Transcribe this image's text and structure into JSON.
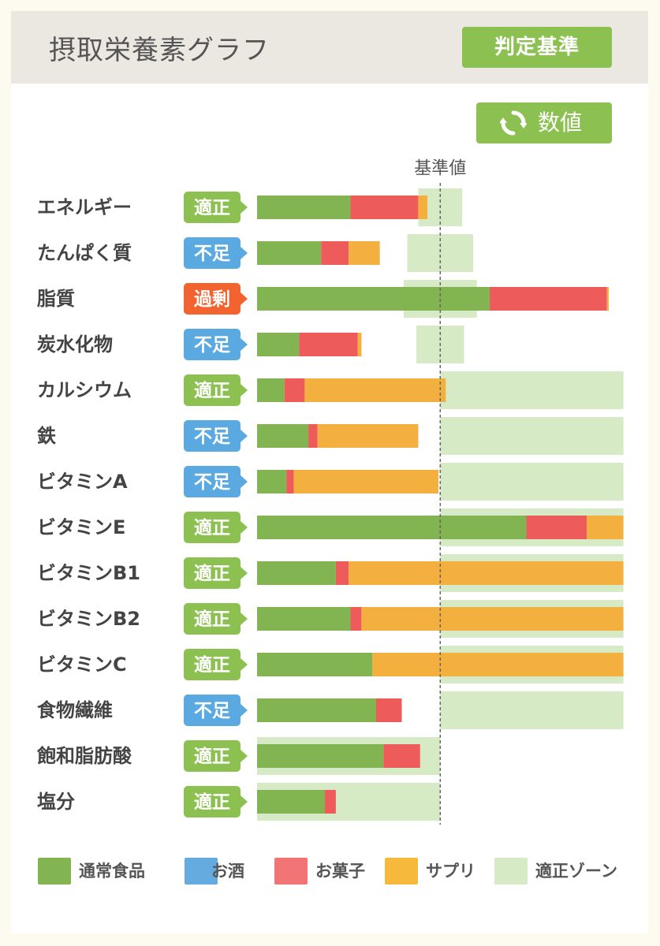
{
  "header": {
    "title": "摂取栄養素グラフ",
    "criteria_button": "判定基準"
  },
  "toggle": {
    "label": "数値",
    "icon": "refresh-icon"
  },
  "colors": {
    "food": "#82b452",
    "alcohol": "#64ace0",
    "sweets": "#ee5b5b",
    "supplement": "#f4b03f",
    "zone": "#d6ebc5",
    "status_ok": "#8cc152",
    "status_low": "#5aa9e0",
    "status_over": "#f3632f"
  },
  "chart_data": {
    "type": "bar",
    "orientation": "horizontal",
    "stacked": true,
    "reference_label": "基準値",
    "reference_value": 100,
    "x_unit": "percent of reference",
    "xlim": [
      0,
      200
    ],
    "categories": [
      "エネルギー",
      "たんぱく質",
      "脂質",
      "炭水化物",
      "カルシウム",
      "鉄",
      "ビタミンA",
      "ビタミンE",
      "ビタミンB1",
      "ビタミンB2",
      "ビタミンC",
      "食物繊維",
      "飽和脂肪酸",
      "塩分"
    ],
    "status": [
      "適正",
      "不足",
      "過剰",
      "不足",
      "適正",
      "不足",
      "不足",
      "適正",
      "適正",
      "適正",
      "適正",
      "不足",
      "適正",
      "適正"
    ],
    "status_type": [
      "ok",
      "low",
      "over",
      "low",
      "ok",
      "low",
      "low",
      "ok",
      "ok",
      "ok",
      "ok",
      "low",
      "ok",
      "ok"
    ],
    "series": [
      {
        "name": "通常食品",
        "key": "food",
        "values": [
          51,
          35,
          127,
          23,
          15,
          28,
          16,
          147,
          43,
          51,
          63,
          65,
          69,
          37
        ]
      },
      {
        "name": "お酒",
        "key": "alcohol",
        "values": [
          0,
          0,
          0,
          0,
          0,
          0,
          0,
          0,
          0,
          0,
          0,
          0,
          0,
          0
        ]
      },
      {
        "name": "お菓子",
        "key": "sweets",
        "values": [
          37,
          15,
          64,
          32,
          11,
          5,
          4,
          33,
          7,
          6,
          0,
          14,
          20,
          6
        ]
      },
      {
        "name": "サプリ",
        "key": "supplement",
        "values": [
          5,
          17,
          1,
          2,
          77,
          55,
          79,
          20,
          150,
          143,
          137,
          0,
          0,
          0
        ]
      }
    ],
    "zones": [
      [
        88,
        112
      ],
      [
        82,
        118
      ],
      [
        80,
        120
      ],
      [
        87,
        113
      ],
      [
        100,
        200
      ],
      [
        100,
        200
      ],
      [
        100,
        200
      ],
      [
        100,
        200
      ],
      [
        100,
        200
      ],
      [
        100,
        200
      ],
      [
        100,
        200
      ],
      [
        100,
        200
      ],
      [
        0,
        100
      ],
      [
        0,
        100
      ]
    ],
    "legend": [
      "通常食品",
      "お酒",
      "お菓子",
      "サプリ",
      "適正ゾーン"
    ],
    "legend_position": "bottom"
  }
}
